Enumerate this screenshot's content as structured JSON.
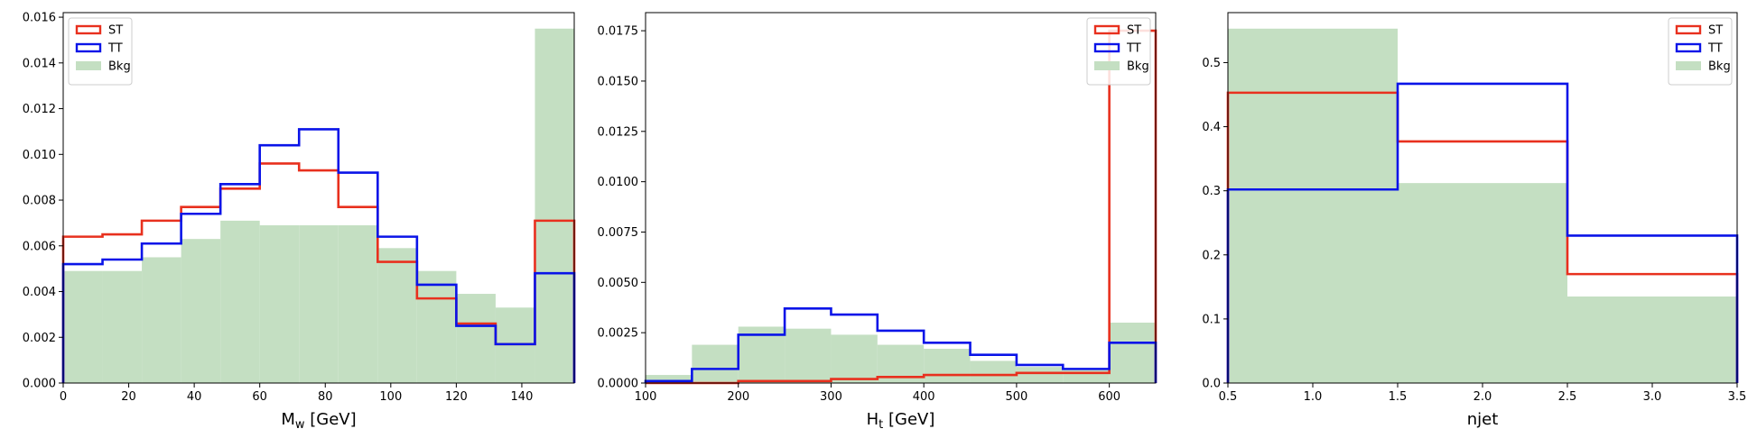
{
  "colors": {
    "ST": "#e8301e",
    "TT": "#0a14e8",
    "Bkg": "#c4dfc2",
    "axis": "#000000"
  },
  "legend": {
    "entries": [
      "ST",
      "TT",
      "Bkg"
    ]
  },
  "chart_data": [
    {
      "type": "histogram",
      "xlabel_main": "M",
      "xlabel_sub": "w",
      "xlabel_rest": " [GeV]",
      "xlim": [
        0,
        156
      ],
      "ylim": [
        0,
        0.0162
      ],
      "xticks": [
        "0",
        "20",
        "40",
        "60",
        "80",
        "100",
        "120",
        "140"
      ],
      "xtick_values": [
        0,
        20,
        40,
        60,
        80,
        100,
        120,
        140
      ],
      "yticks": [
        "0.000",
        "0.002",
        "0.004",
        "0.006",
        "0.008",
        "0.010",
        "0.012",
        "0.014",
        "0.016"
      ],
      "ytick_values": [
        0,
        0.002,
        0.004,
        0.006,
        0.008,
        0.01,
        0.012,
        0.014,
        0.016
      ],
      "legend_position": "top-left",
      "bin_edges": [
        0,
        12,
        24,
        36,
        48,
        60,
        72,
        84,
        96,
        108,
        120,
        132,
        144,
        156
      ],
      "series": [
        {
          "name": "Bkg",
          "style": "filled",
          "values": [
            0.0049,
            0.0049,
            0.0055,
            0.0063,
            0.0071,
            0.0069,
            0.0069,
            0.0069,
            0.0059,
            0.0049,
            0.0039,
            0.0033,
            0.0155
          ]
        },
        {
          "name": "ST",
          "style": "step",
          "values": [
            0.0064,
            0.0065,
            0.0071,
            0.0077,
            0.0085,
            0.0096,
            0.0093,
            0.0077,
            0.0053,
            0.0037,
            0.0026,
            0.0017,
            0.0071
          ]
        },
        {
          "name": "TT",
          "style": "step",
          "values": [
            0.0052,
            0.0054,
            0.0061,
            0.0074,
            0.0087,
            0.0104,
            0.0111,
            0.0092,
            0.0064,
            0.0043,
            0.0025,
            0.0017,
            0.0048
          ]
        }
      ]
    },
    {
      "type": "histogram",
      "xlabel_main": "H",
      "xlabel_sub": "t",
      "xlabel_rest": " [GeV]",
      "xlim": [
        100,
        650
      ],
      "ylim": [
        0,
        0.0184
      ],
      "xticks": [
        "100",
        "200",
        "300",
        "400",
        "500",
        "600"
      ],
      "xtick_values": [
        100,
        200,
        300,
        400,
        500,
        600
      ],
      "yticks": [
        "0.0000",
        "0.0025",
        "0.0050",
        "0.0075",
        "0.0100",
        "0.0125",
        "0.0150",
        "0.0175"
      ],
      "ytick_values": [
        0,
        0.0025,
        0.005,
        0.0075,
        0.01,
        0.0125,
        0.015,
        0.0175
      ],
      "legend_position": "top-right",
      "bin_edges": [
        100,
        150,
        200,
        250,
        300,
        350,
        400,
        450,
        500,
        550,
        600,
        650
      ],
      "series": [
        {
          "name": "Bkg",
          "style": "filled",
          "values": [
            0.0004,
            0.0019,
            0.0028,
            0.0027,
            0.0024,
            0.0019,
            0.0017,
            0.0011,
            0.0008,
            0.0007,
            0.003
          ]
        },
        {
          "name": "ST",
          "style": "step",
          "values": [
            0.0,
            0.0,
            0.0001,
            0.0001,
            0.0002,
            0.0003,
            0.0004,
            0.0004,
            0.0005,
            0.0005,
            0.0175
          ]
        },
        {
          "name": "TT",
          "style": "step",
          "values": [
            0.0001,
            0.0007,
            0.0024,
            0.0037,
            0.0034,
            0.0026,
            0.002,
            0.0014,
            0.0009,
            0.0007,
            0.002
          ]
        }
      ]
    },
    {
      "type": "histogram",
      "xlabel_main": "njet",
      "xlabel_sub": "",
      "xlabel_rest": "",
      "xlim": [
        0.5,
        3.5
      ],
      "ylim": [
        0,
        0.578
      ],
      "xticks": [
        "0.5",
        "1.0",
        "1.5",
        "2.0",
        "2.5",
        "3.0",
        "3.5"
      ],
      "xtick_values": [
        0.5,
        1.0,
        1.5,
        2.0,
        2.5,
        3.0,
        3.5
      ],
      "yticks": [
        "0.0",
        "0.1",
        "0.2",
        "0.3",
        "0.4",
        "0.5"
      ],
      "ytick_values": [
        0,
        0.1,
        0.2,
        0.3,
        0.4,
        0.5
      ],
      "legend_position": "top-right",
      "bin_edges": [
        0.5,
        1.5,
        2.5,
        3.5
      ],
      "series": [
        {
          "name": "Bkg",
          "style": "filled",
          "values": [
            0.553,
            0.312,
            0.135
          ]
        },
        {
          "name": "ST",
          "style": "step",
          "values": [
            0.453,
            0.377,
            0.17
          ]
        },
        {
          "name": "TT",
          "style": "step",
          "values": [
            0.302,
            0.467,
            0.23
          ]
        }
      ]
    }
  ]
}
